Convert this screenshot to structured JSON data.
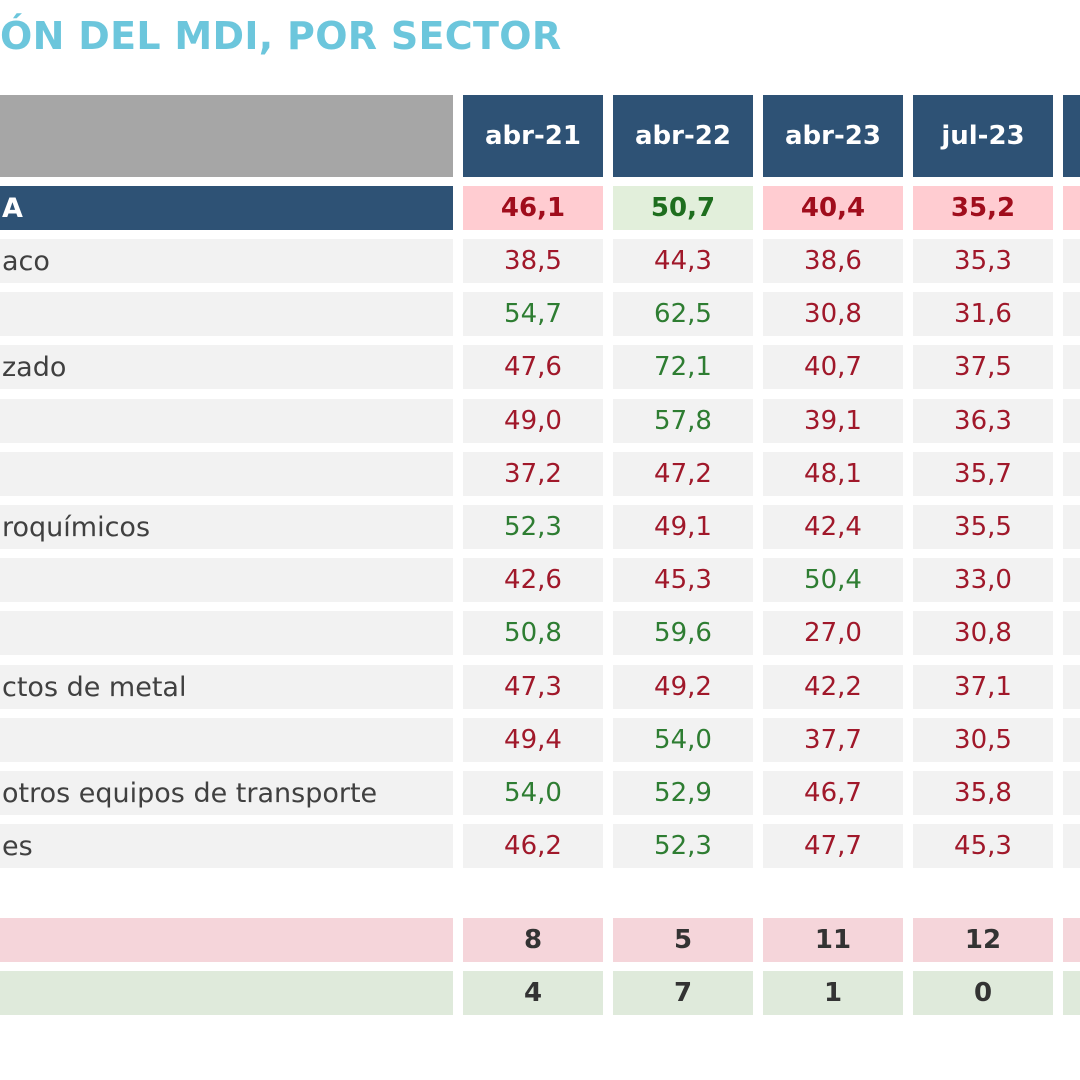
{
  "title": "ÓN DEL MDI, POR SECTOR",
  "colors": {
    "header_bg": "#2e5275",
    "title": "#6cc6dc",
    "red_text": "#a0182a",
    "green_text": "#2e7d32",
    "red_bg": "#ffccd1",
    "green_bg": "#e2efdb",
    "row_bg": "#f2f2f2"
  },
  "columns": [
    "abr-21",
    "abr-22",
    "abr-23",
    "jul-23"
  ],
  "total_row": {
    "label": "A",
    "values": [
      {
        "text": "46,1",
        "status": "red"
      },
      {
        "text": "50,7",
        "status": "green"
      },
      {
        "text": "40,4",
        "status": "red"
      },
      {
        "text": "35,2",
        "status": "red"
      }
    ]
  },
  "rows": [
    {
      "label": "aco",
      "values": [
        {
          "text": "38,5",
          "status": "red"
        },
        {
          "text": "44,3",
          "status": "red"
        },
        {
          "text": "38,6",
          "status": "red"
        },
        {
          "text": "35,3",
          "status": "red"
        }
      ]
    },
    {
      "label": "",
      "values": [
        {
          "text": "54,7",
          "status": "green"
        },
        {
          "text": "62,5",
          "status": "green"
        },
        {
          "text": "30,8",
          "status": "red"
        },
        {
          "text": "31,6",
          "status": "red"
        }
      ]
    },
    {
      "label": "zado",
      "values": [
        {
          "text": "47,6",
          "status": "red"
        },
        {
          "text": "72,1",
          "status": "green"
        },
        {
          "text": "40,7",
          "status": "red"
        },
        {
          "text": "37,5",
          "status": "red"
        }
      ]
    },
    {
      "label": "",
      "values": [
        {
          "text": "49,0",
          "status": "red"
        },
        {
          "text": "57,8",
          "status": "green"
        },
        {
          "text": "39,1",
          "status": "red"
        },
        {
          "text": "36,3",
          "status": "red"
        }
      ]
    },
    {
      "label": "",
      "values": [
        {
          "text": "37,2",
          "status": "red"
        },
        {
          "text": "47,2",
          "status": "red"
        },
        {
          "text": "48,1",
          "status": "red"
        },
        {
          "text": "35,7",
          "status": "red"
        }
      ]
    },
    {
      "label": "roquímicos",
      "values": [
        {
          "text": "52,3",
          "status": "green"
        },
        {
          "text": "49,1",
          "status": "red"
        },
        {
          "text": "42,4",
          "status": "red"
        },
        {
          "text": "35,5",
          "status": "red"
        }
      ]
    },
    {
      "label": "",
      "values": [
        {
          "text": "42,6",
          "status": "red"
        },
        {
          "text": "45,3",
          "status": "red"
        },
        {
          "text": "50,4",
          "status": "green"
        },
        {
          "text": "33,0",
          "status": "red"
        }
      ]
    },
    {
      "label": "",
      "values": [
        {
          "text": "50,8",
          "status": "green"
        },
        {
          "text": "59,6",
          "status": "green"
        },
        {
          "text": "27,0",
          "status": "red"
        },
        {
          "text": "30,8",
          "status": "red"
        }
      ]
    },
    {
      "label": "ctos de metal",
      "values": [
        {
          "text": "47,3",
          "status": "red"
        },
        {
          "text": "49,2",
          "status": "red"
        },
        {
          "text": "42,2",
          "status": "red"
        },
        {
          "text": "37,1",
          "status": "red"
        }
      ]
    },
    {
      "label": "",
      "values": [
        {
          "text": "49,4",
          "status": "red"
        },
        {
          "text": "54,0",
          "status": "green"
        },
        {
          "text": "37,7",
          "status": "red"
        },
        {
          "text": "30,5",
          "status": "red"
        }
      ]
    },
    {
      "label": "otros equipos de transporte",
      "values": [
        {
          "text": "54,0",
          "status": "green"
        },
        {
          "text": "52,9",
          "status": "green"
        },
        {
          "text": "46,7",
          "status": "red"
        },
        {
          "text": "35,8",
          "status": "red"
        }
      ]
    },
    {
      "label": "es",
      "values": [
        {
          "text": "46,2",
          "status": "red"
        },
        {
          "text": "52,3",
          "status": "green"
        },
        {
          "text": "47,7",
          "status": "red"
        },
        {
          "text": "45,3",
          "status": "red"
        }
      ]
    }
  ],
  "counts": {
    "below_50": [
      "8",
      "5",
      "11",
      "12"
    ],
    "above_50": [
      "4",
      "7",
      "1",
      "0"
    ]
  }
}
